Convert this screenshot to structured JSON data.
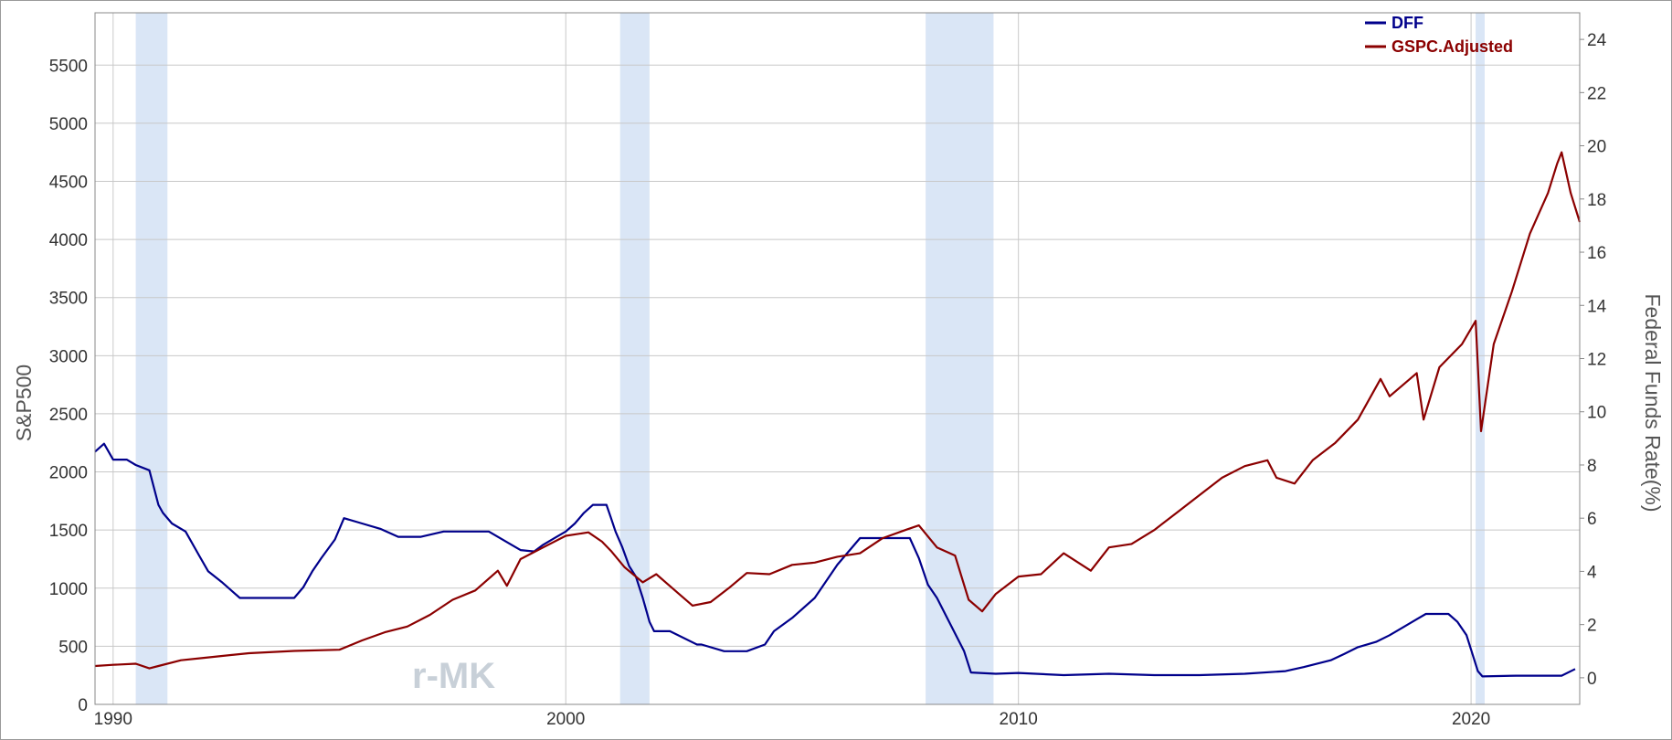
{
  "chart_data": {
    "type": "line",
    "title": "",
    "xlabel": "",
    "ylabel": "S&P500",
    "y2label": "Federal Funds Rate(%)",
    "x_range": [
      1989.6,
      2022.4
    ],
    "x_ticks": [
      "1990",
      "2000",
      "2010",
      "2020"
    ],
    "ylim": [
      0,
      5950
    ],
    "y_ticks": [
      "0",
      "500",
      "1000",
      "1500",
      "2000",
      "2500",
      "3000",
      "3500",
      "4000",
      "4500",
      "5000",
      "5500"
    ],
    "y2lim": [
      -1.0,
      25.0
    ],
    "y2_ticks": [
      "0",
      "2",
      "4",
      "6",
      "8",
      "10",
      "12",
      "14",
      "16",
      "18",
      "20",
      "22",
      "24"
    ],
    "grid": true,
    "legend_position": "top-right",
    "watermark": "r-MK",
    "recessions": [
      [
        1990.5,
        1991.2
      ],
      [
        2001.2,
        2001.85
      ],
      [
        2007.95,
        2009.45
      ],
      [
        2020.1,
        2020.3
      ]
    ],
    "series": [
      {
        "name": "DFF",
        "axis": "right",
        "color": "#00008b",
        "x": [
          1989.6,
          1989.8,
          1990.0,
          1990.3,
          1990.5,
          1990.8,
          1991.0,
          1991.1,
          1991.3,
          1991.6,
          1991.9,
          1992.1,
          1992.4,
          1992.8,
          1993.2,
          1993.6,
          1994.0,
          1994.2,
          1994.4,
          1994.6,
          1994.9,
          1995.1,
          1995.5,
          1995.9,
          1996.3,
          1996.8,
          1997.3,
          1997.8,
          1998.3,
          1998.8,
          1999.0,
          1999.3,
          1999.5,
          1999.8,
          2000.0,
          2000.2,
          2000.4,
          2000.6,
          2000.9,
          2001.0,
          2001.1,
          2001.25,
          2001.4,
          2001.55,
          2001.7,
          2001.85,
          2001.95,
          2002.3,
          2002.9,
          2003.0,
          2003.5,
          2003.6,
          2004.0,
          2004.4,
          2004.6,
          2005.0,
          2005.5,
          2006.0,
          2006.5,
          2007.0,
          2007.6,
          2007.8,
          2008.0,
          2008.2,
          2008.5,
          2008.8,
          2008.95,
          2009.5,
          2010.0,
          2011.0,
          2012.0,
          2013.0,
          2014.0,
          2015.0,
          2015.9,
          2016.3,
          2016.9,
          2017.2,
          2017.5,
          2017.9,
          2018.2,
          2018.5,
          2018.8,
          2019.0,
          2019.5,
          2019.7,
          2019.9,
          2020.15,
          2020.25,
          2021.0,
          2022.0,
          2022.3
        ],
        "values": [
          8.5,
          8.8,
          8.2,
          8.2,
          8.0,
          7.8,
          6.5,
          6.2,
          5.8,
          5.5,
          4.6,
          4.0,
          3.6,
          3.0,
          3.0,
          3.0,
          3.0,
          3.4,
          4.0,
          4.5,
          5.2,
          6.0,
          5.8,
          5.6,
          5.3,
          5.3,
          5.5,
          5.5,
          5.5,
          5.0,
          4.8,
          4.75,
          5.0,
          5.3,
          5.5,
          5.8,
          6.2,
          6.5,
          6.5,
          6.0,
          5.5,
          4.9,
          4.2,
          3.8,
          3.0,
          2.1,
          1.75,
          1.75,
          1.25,
          1.25,
          1.0,
          1.0,
          1.0,
          1.25,
          1.75,
          2.25,
          3.0,
          4.25,
          5.25,
          5.25,
          5.25,
          4.5,
          3.5,
          3.0,
          2.0,
          1.0,
          0.2,
          0.15,
          0.18,
          0.1,
          0.15,
          0.1,
          0.1,
          0.15,
          0.25,
          0.4,
          0.66,
          0.9,
          1.15,
          1.35,
          1.6,
          1.9,
          2.2,
          2.4,
          2.4,
          2.1,
          1.6,
          0.25,
          0.05,
          0.08,
          0.08,
          0.33
        ]
      },
      {
        "name": "GSPC.Adjusted",
        "axis": "left",
        "color": "#8b0000",
        "x": [
          1989.6,
          1990.0,
          1990.5,
          1990.8,
          1991.0,
          1991.5,
          1992.0,
          1993.0,
          1994.0,
          1995.0,
          1995.5,
          1996.0,
          1996.5,
          1997.0,
          1997.5,
          1998.0,
          1998.5,
          1998.7,
          1999.0,
          1999.5,
          2000.0,
          2000.5,
          2000.8,
          2001.0,
          2001.3,
          2001.7,
          2002.0,
          2002.5,
          2002.8,
          2003.2,
          2003.6,
          2004.0,
          2004.5,
          2005.0,
          2005.5,
          2006.0,
          2006.5,
          2007.0,
          2007.5,
          2007.8,
          2008.2,
          2008.6,
          2008.9,
          2009.2,
          2009.5,
          2010.0,
          2010.5,
          2011.0,
          2011.6,
          2012.0,
          2012.5,
          2013.0,
          2013.5,
          2014.0,
          2014.5,
          2015.0,
          2015.5,
          2015.7,
          2016.1,
          2016.5,
          2017.0,
          2017.5,
          2018.0,
          2018.2,
          2018.8,
          2018.95,
          2019.3,
          2019.8,
          2020.1,
          2020.22,
          2020.5,
          2020.9,
          2021.3,
          2021.7,
          2021.9,
          2022.0,
          2022.2,
          2022.4
        ],
        "values": [
          330,
          340,
          350,
          310,
          330,
          380,
          400,
          440,
          460,
          470,
          550,
          620,
          670,
          770,
          900,
          980,
          1150,
          1020,
          1250,
          1350,
          1450,
          1480,
          1400,
          1320,
          1180,
          1050,
          1120,
          950,
          850,
          880,
          1000,
          1130,
          1120,
          1200,
          1220,
          1270,
          1300,
          1430,
          1500,
          1540,
          1350,
          1280,
          900,
          800,
          950,
          1100,
          1120,
          1300,
          1150,
          1350,
          1380,
          1500,
          1650,
          1800,
          1950,
          2050,
          2100,
          1950,
          1900,
          2100,
          2250,
          2450,
          2800,
          2650,
          2850,
          2450,
          2900,
          3100,
          3300,
          2350,
          3100,
          3550,
          4050,
          4400,
          4650,
          4750,
          4400,
          4150
        ]
      }
    ]
  }
}
